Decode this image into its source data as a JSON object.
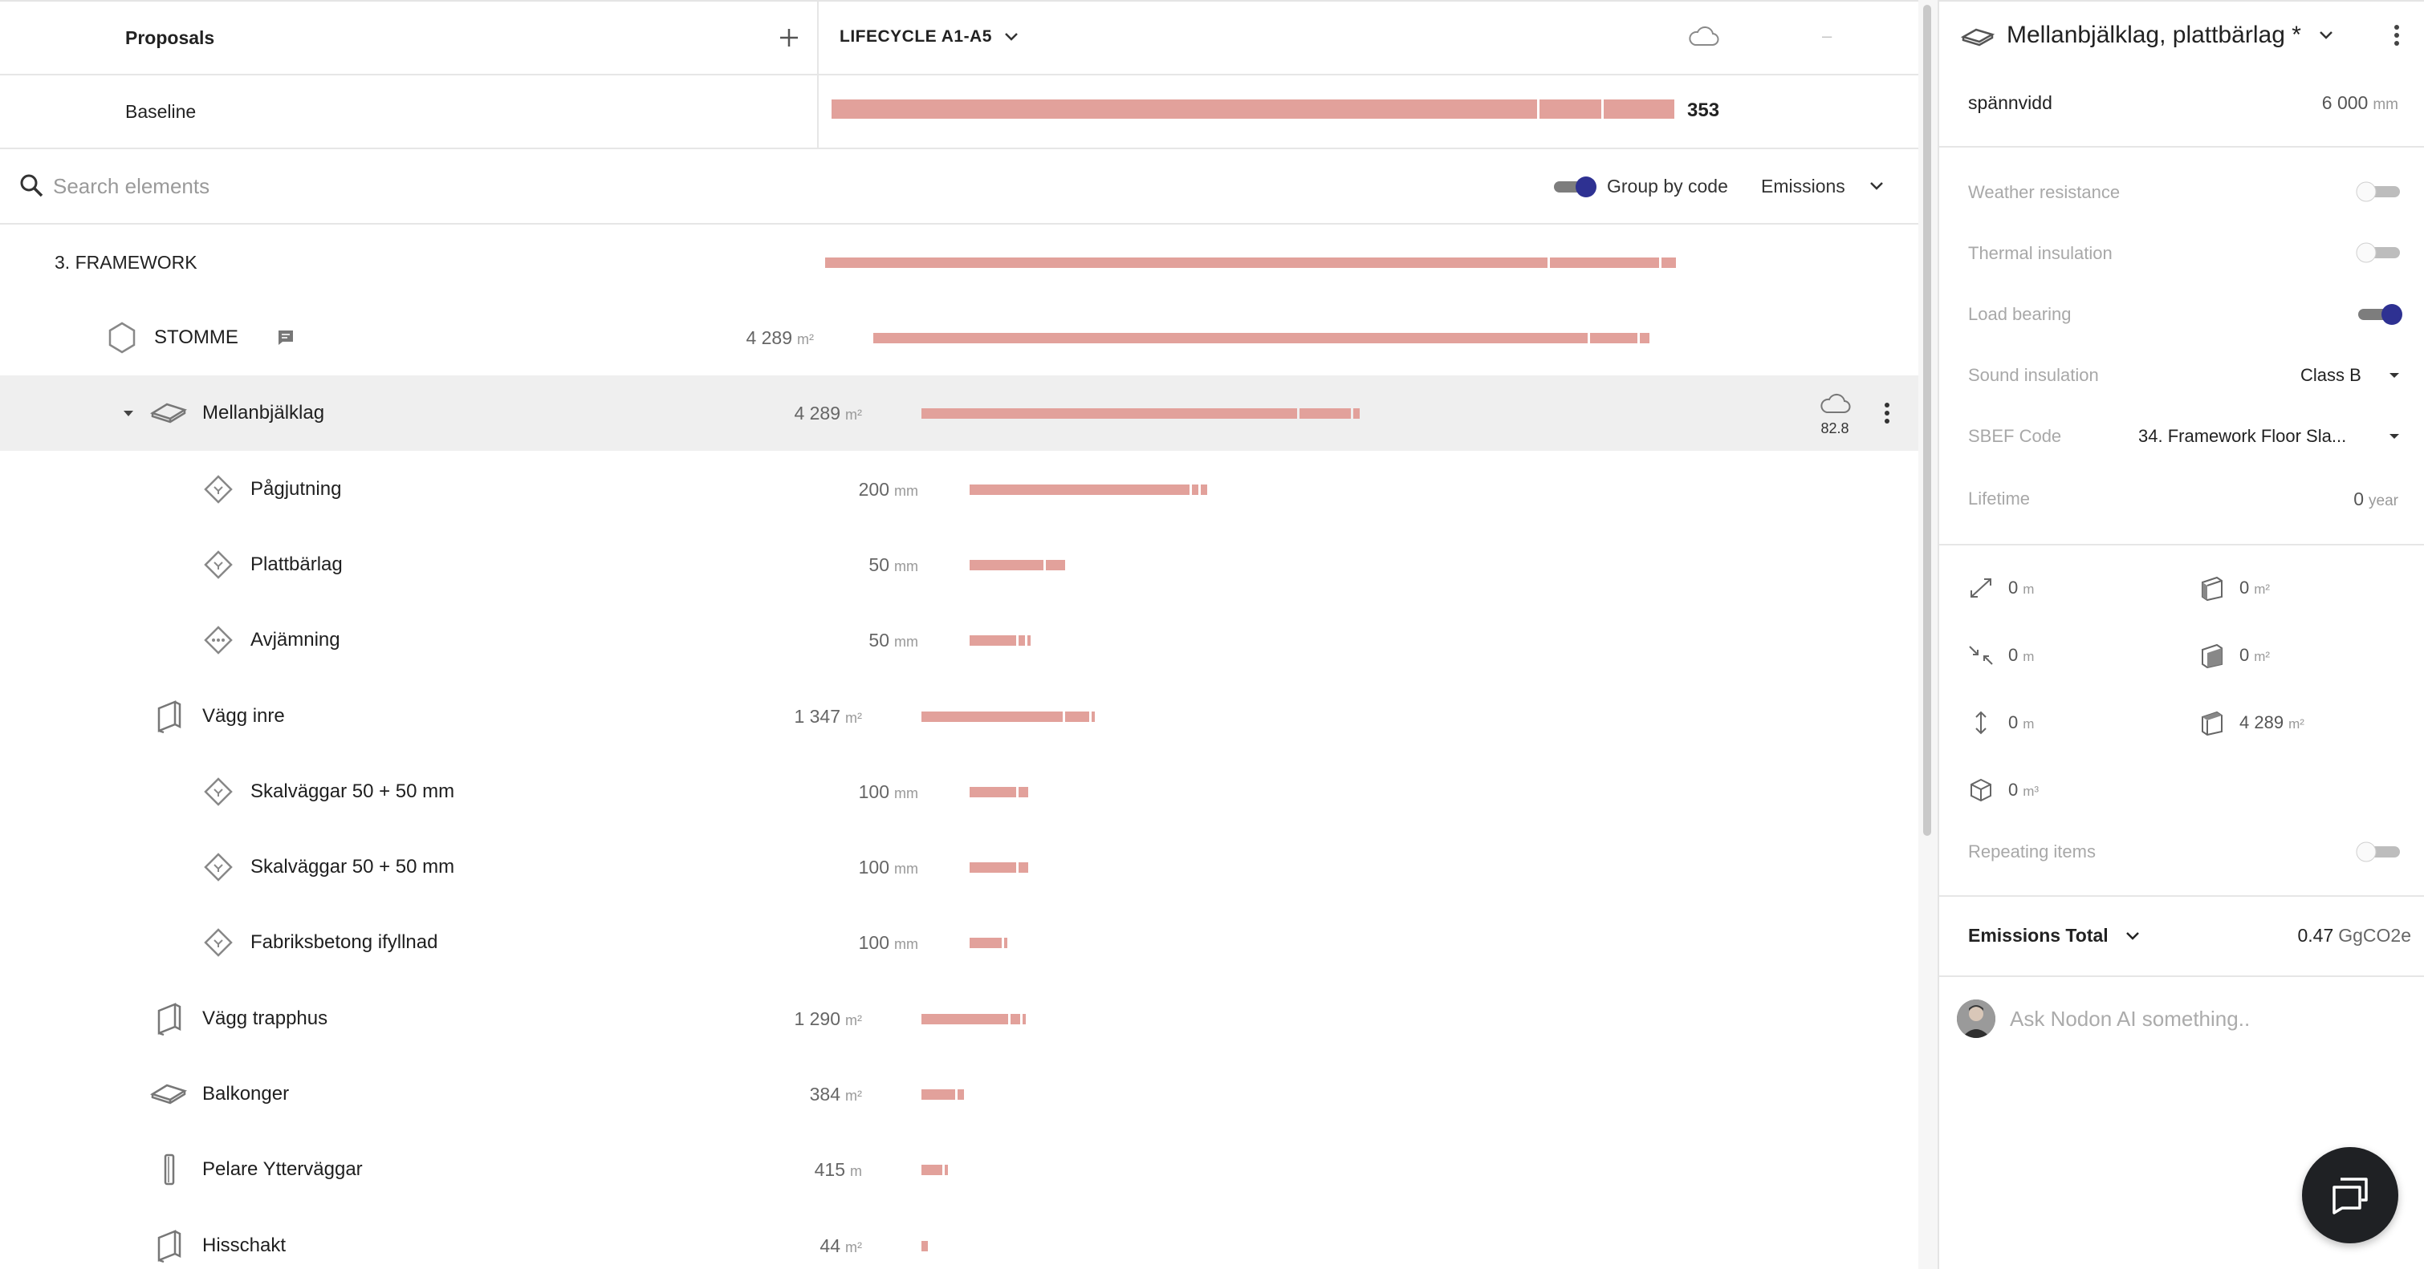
{
  "header": {
    "proposals_label": "Proposals",
    "lifecycle_label": "LIFECYCLE A1-A5",
    "dash": "–"
  },
  "baseline": {
    "label": "Baseline",
    "value": "353",
    "segments": [
      0.8137,
      0.0709,
      0.0815
    ]
  },
  "toolbar": {
    "search_placeholder": "Search elements",
    "group_by_label": "Group by code",
    "group_by_enabled": true,
    "metric": "Emissions"
  },
  "tree": {
    "section_label": "3. FRAMEWORK",
    "rows": [
      {
        "kind": "group",
        "label": "STOMME",
        "qty": "4 289",
        "unit": "m²",
        "segments": [
          0.8241,
          0.0546,
          0.0111
        ]
      },
      {
        "kind": "element",
        "label": "Mellanbjälklag",
        "qty": "4 289",
        "unit": "m²",
        "segments": [
          0.4333,
          0.0593,
          0.0074
        ],
        "cloud_value": "82.8",
        "selected": true,
        "expanded": true
      },
      {
        "kind": "material",
        "label": "Pågjutning",
        "qty": "200",
        "unit": "mm",
        "segments": [
          0.2537,
          0.0074,
          0.0074
        ]
      },
      {
        "kind": "material",
        "label": "Plattbärlag",
        "qty": "50",
        "unit": "mm",
        "segments": [
          0.0852,
          0.0222
        ]
      },
      {
        "kind": "material",
        "label": "Avjämning",
        "qty": "50",
        "unit": "mm",
        "segments": [
          0.0537,
          0.0074,
          0.0037
        ]
      },
      {
        "kind": "element",
        "label": "Vägg inre",
        "qty": "1 347",
        "unit": "m²",
        "segments": [
          0.163,
          0.0278,
          0.0037
        ]
      },
      {
        "kind": "material",
        "label": "Skalväggar 50 + 50 mm",
        "qty": "100",
        "unit": "mm",
        "segments": [
          0.0537,
          0.0111
        ]
      },
      {
        "kind": "material",
        "label": "Skalväggar 50 + 50 mm",
        "qty": "100",
        "unit": "mm",
        "segments": [
          0.0537,
          0.0111
        ]
      },
      {
        "kind": "material",
        "label": "Fabriksbetong ifyllnad",
        "qty": "100",
        "unit": "mm",
        "segments": [
          0.037,
          0.0037
        ]
      },
      {
        "kind": "element",
        "label": "Vägg trapphus",
        "qty": "1 290",
        "unit": "m²",
        "segments": [
          0.1,
          0.0111,
          0.0037
        ]
      },
      {
        "kind": "element",
        "label": "Balkonger",
        "qty": "384",
        "unit": "m²",
        "segments": [
          0.0389,
          0.0074
        ]
      },
      {
        "kind": "element",
        "label": "Pelare Ytterväggar",
        "qty": "415",
        "unit": "m",
        "segments": [
          0.0241,
          0.0037
        ]
      },
      {
        "kind": "element",
        "label": "Hisschakt",
        "qty": "44",
        "unit": "m²",
        "segments": [
          0.0074
        ]
      }
    ],
    "section_segments": [
      0.8333,
      0.1259,
      0.0167
    ]
  },
  "details": {
    "title": "Mellanbjälklag, plattbärlag *",
    "span_label": "spännvidd",
    "span_value": "6 000",
    "span_unit": "mm",
    "weather_label": "Weather resistance",
    "weather_on": false,
    "thermal_label": "Thermal insulation",
    "thermal_on": false,
    "load_label": "Load bearing",
    "load_on": true,
    "sound_label": "Sound insulation",
    "sound_value": "Class B",
    "sbef_label": "SBEF Code",
    "sbef_value": "34. Framework Floor Sla...",
    "lifetime_label": "Lifetime",
    "lifetime_value": "0",
    "lifetime_unit": "year",
    "dims": [
      {
        "icon": "length-arrow-icon",
        "value": "0",
        "unit": "m"
      },
      {
        "icon": "side-area-icon",
        "value": "0",
        "unit": "m²"
      },
      {
        "icon": "width-arrow-icon",
        "value": "0",
        "unit": "m"
      },
      {
        "icon": "front-area-icon",
        "value": "0",
        "unit": "m²"
      },
      {
        "icon": "height-arrow-icon",
        "value": "0",
        "unit": "m"
      },
      {
        "icon": "top-area-icon",
        "value": "4 289",
        "unit": "m²"
      },
      {
        "icon": "volume-cube-icon",
        "value": "0",
        "unit": "m³"
      }
    ],
    "repeating_label": "Repeating items",
    "repeating_on": false,
    "emissions_label": "Emissions Total",
    "emissions_value": "0.47",
    "emissions_unit": "GgCO2e",
    "ai_placeholder": "Ask Nodon AI something.."
  },
  "colors": {
    "bar": "#e2a19b",
    "accent": "#2e3192",
    "toggle_track_on": "#7d7d7d",
    "selected_row": "#efefef"
  }
}
